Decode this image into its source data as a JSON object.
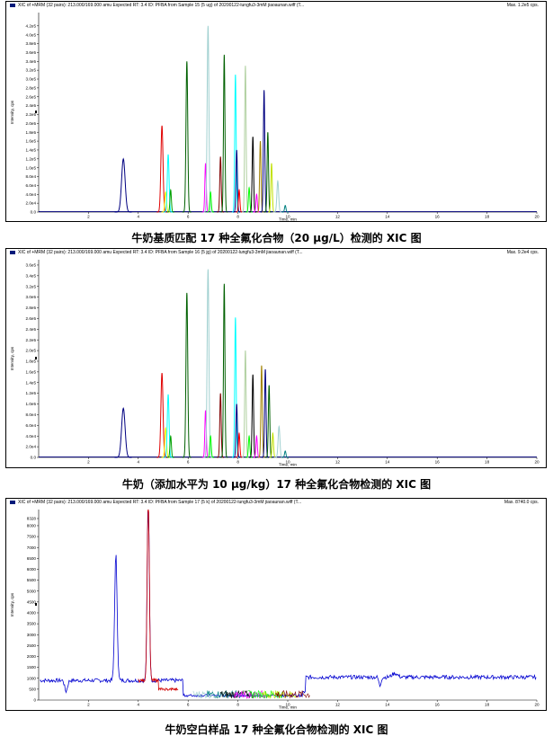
{
  "panels": [
    {
      "header": "XIC of +MRM (32 pairs): 213.000/169.000 amu Expected RT: 3.4 ID: PFBA from Sample 15 (5 ug) of 20200122-lungfu3-3mM jiaoaunan.wiff (T...",
      "max_label": "Max. 1.2e5 cps.",
      "caption": "牛奶基质匹配 17 种全氟化合物（20 μg/L）检测的 XIC 图",
      "ylabel": "Intensity, cps",
      "xlabel": "Time, min"
    },
    {
      "header": "XIC of +MRM (32 pairs): 213.000/169.000 amu Expected RT: 3.4 ID: PFBA from Sample 16 (5 jg) of 20200122-lungfu3-3mM jiaoaunan.wiff (T...",
      "max_label": "Max. 9.2e4 cps.",
      "caption": "牛奶（添加水平为 10 μg/kg）17 种全氟化合物检测的 XIC 图",
      "ylabel": "Intensity, cps",
      "xlabel": "Time, min"
    },
    {
      "header": "XIC of +MRM (32 pairs): 213.000/169.000 amu Expected RT: 3.4 ID: PFBA from Sample 17 (5 k) of 20200122-lungfu3-3mM jiaoaunan.wiff (T...",
      "max_label": "Max. 8740.0 cps.",
      "caption": "牛奶空白样品 17 种全氟化合物检测的 XIC 图",
      "ylabel": "Intensity, cps",
      "xlabel": "Time, min"
    }
  ],
  "chart_data": [
    {
      "type": "line",
      "xlabel": "Time, min",
      "ylabel": "Intensity, cps",
      "xlim": [
        0,
        20
      ],
      "x_ticks": [
        "2",
        "4",
        "6",
        "8",
        "10",
        "12",
        "14",
        "16",
        "18",
        "20"
      ],
      "ylim": [
        0,
        450000
      ],
      "y_ticks": [
        "0.0",
        "2.0e4",
        "4.0e4",
        "6.0e4",
        "8.0e4",
        "1.0e5",
        "1.2e5",
        "1.4e5",
        "1.6e5",
        "1.8e5",
        "2.0e5",
        "2.2e5",
        "2.4e5",
        "2.6e5",
        "2.8e5",
        "3.0e5",
        "3.2e5",
        "3.4e5",
        "3.6e5",
        "3.8e5",
        "4.0e5",
        "4.2e5"
      ],
      "y_tick_values": [
        0,
        20000,
        40000,
        60000,
        80000,
        100000,
        120000,
        140000,
        160000,
        180000,
        200000,
        220000,
        240000,
        260000,
        280000,
        300000,
        320000,
        340000,
        360000,
        380000,
        400000,
        420000
      ],
      "peaks": [
        {
          "rt": 3.4,
          "height": 120000,
          "color": "#000080",
          "width": 0.1
        },
        {
          "rt": 4.95,
          "height": 195000,
          "color": "#e00000",
          "width": 0.06
        },
        {
          "rt": 5.1,
          "height": 45000,
          "color": "#ffff00",
          "width": 0.05
        },
        {
          "rt": 5.2,
          "height": 130000,
          "color": "#00ffff",
          "width": 0.05
        },
        {
          "rt": 5.3,
          "height": 50000,
          "color": "#00a000",
          "width": 0.04
        },
        {
          "rt": 5.95,
          "height": 340000,
          "color": "#006000",
          "width": 0.05
        },
        {
          "rt": 6.7,
          "height": 110000,
          "color": "#ff00ff",
          "width": 0.04
        },
        {
          "rt": 6.8,
          "height": 420000,
          "color": "#a0d0d0",
          "width": 0.05
        },
        {
          "rt": 6.9,
          "height": 45000,
          "color": "#00ff00",
          "width": 0.04
        },
        {
          "rt": 7.3,
          "height": 125000,
          "color": "#800000",
          "width": 0.04
        },
        {
          "rt": 7.45,
          "height": 355000,
          "color": "#006000",
          "width": 0.04
        },
        {
          "rt": 7.9,
          "height": 310000,
          "color": "#00ffff",
          "width": 0.04
        },
        {
          "rt": 7.95,
          "height": 140000,
          "color": "#000080",
          "width": 0.04
        },
        {
          "rt": 8.05,
          "height": 50000,
          "color": "#ff0000",
          "width": 0.04
        },
        {
          "rt": 8.3,
          "height": 330000,
          "color": "#b0d0a0",
          "width": 0.04
        },
        {
          "rt": 8.45,
          "height": 55000,
          "color": "#00ff00",
          "width": 0.04
        },
        {
          "rt": 8.6,
          "height": 170000,
          "color": "#000000",
          "width": 0.04
        },
        {
          "rt": 8.75,
          "height": 40000,
          "color": "#ff00ff",
          "width": 0.04
        },
        {
          "rt": 8.9,
          "height": 160000,
          "color": "#a08000",
          "width": 0.04
        },
        {
          "rt": 9.05,
          "height": 275000,
          "color": "#000080",
          "width": 0.04
        },
        {
          "rt": 9.2,
          "height": 180000,
          "color": "#006000",
          "width": 0.04
        },
        {
          "rt": 9.35,
          "height": 110000,
          "color": "#c0e000",
          "width": 0.04
        },
        {
          "rt": 9.6,
          "height": 70000,
          "color": "#a0d0d0",
          "width": 0.05
        },
        {
          "rt": 9.9,
          "height": 15000,
          "color": "#008080",
          "width": 0.04
        }
      ]
    },
    {
      "type": "line",
      "xlabel": "Time, min",
      "ylabel": "Intensity, cps",
      "xlim": [
        0,
        20
      ],
      "x_ticks": [
        "2",
        "4",
        "6",
        "8",
        "10",
        "12",
        "14",
        "16",
        "18",
        "20"
      ],
      "ylim": [
        0,
        370000
      ],
      "y_ticks": [
        "0.0",
        "2.0e4",
        "4.0e4",
        "6.0e4",
        "8.0e4",
        "1.0e5",
        "1.2e5",
        "1.4e5",
        "1.6e5",
        "1.8e5",
        "2.0e5",
        "2.2e5",
        "2.4e5",
        "2.6e5",
        "2.8e5",
        "3.0e5",
        "3.2e5",
        "3.4e5",
        "3.6e5"
      ],
      "y_tick_values": [
        0,
        20000,
        40000,
        60000,
        80000,
        100000,
        120000,
        140000,
        160000,
        180000,
        200000,
        220000,
        240000,
        260000,
        280000,
        300000,
        320000,
        340000,
        360000
      ],
      "peaks": [
        {
          "rt": 3.4,
          "height": 92000,
          "color": "#000080",
          "width": 0.1
        },
        {
          "rt": 4.95,
          "height": 158000,
          "color": "#e00000",
          "width": 0.06
        },
        {
          "rt": 5.1,
          "height": 55000,
          "color": "#ffff00",
          "width": 0.05
        },
        {
          "rt": 5.2,
          "height": 118000,
          "color": "#00ffff",
          "width": 0.05
        },
        {
          "rt": 5.3,
          "height": 40000,
          "color": "#00a000",
          "width": 0.04
        },
        {
          "rt": 5.95,
          "height": 308000,
          "color": "#006000",
          "width": 0.05
        },
        {
          "rt": 6.7,
          "height": 88000,
          "color": "#ff00ff",
          "width": 0.04
        },
        {
          "rt": 6.8,
          "height": 352000,
          "color": "#a0d0d0",
          "width": 0.05
        },
        {
          "rt": 6.9,
          "height": 40000,
          "color": "#00ff00",
          "width": 0.04
        },
        {
          "rt": 7.3,
          "height": 120000,
          "color": "#800000",
          "width": 0.04
        },
        {
          "rt": 7.45,
          "height": 325000,
          "color": "#006000",
          "width": 0.04
        },
        {
          "rt": 7.9,
          "height": 262000,
          "color": "#00ffff",
          "width": 0.04
        },
        {
          "rt": 7.95,
          "height": 100000,
          "color": "#000080",
          "width": 0.04
        },
        {
          "rt": 8.05,
          "height": 45000,
          "color": "#ff0000",
          "width": 0.04
        },
        {
          "rt": 8.3,
          "height": 200000,
          "color": "#b0d0a0",
          "width": 0.04
        },
        {
          "rt": 8.45,
          "height": 40000,
          "color": "#00ff00",
          "width": 0.04
        },
        {
          "rt": 8.6,
          "height": 155000,
          "color": "#000000",
          "width": 0.04
        },
        {
          "rt": 8.75,
          "height": 40000,
          "color": "#ff00ff",
          "width": 0.04
        },
        {
          "rt": 8.95,
          "height": 172000,
          "color": "#a08000",
          "width": 0.04
        },
        {
          "rt": 9.1,
          "height": 165000,
          "color": "#000080",
          "width": 0.04
        },
        {
          "rt": 9.25,
          "height": 135000,
          "color": "#006000",
          "width": 0.04
        },
        {
          "rt": 9.4,
          "height": 45000,
          "color": "#c0e000",
          "width": 0.04
        },
        {
          "rt": 9.65,
          "height": 58000,
          "color": "#a0d0d0",
          "width": 0.05
        },
        {
          "rt": 9.9,
          "height": 12000,
          "color": "#008080",
          "width": 0.04
        }
      ]
    },
    {
      "type": "line",
      "xlabel": "Time, min",
      "ylabel": "Intensity, cps",
      "xlim": [
        0,
        20
      ],
      "x_ticks": [
        "2",
        "4",
        "6",
        "8",
        "10",
        "12",
        "14",
        "16",
        "18",
        "20"
      ],
      "ylim": [
        0,
        8740
      ],
      "y_ticks": [
        "0",
        "500",
        "1000",
        "1500",
        "2000",
        "2500",
        "3000",
        "3500",
        "4000",
        "4500",
        "5000",
        "5500",
        "6000",
        "6500",
        "7000",
        "7500",
        "8000",
        "8328"
      ],
      "y_tick_values": [
        0,
        500,
        1000,
        1500,
        2000,
        2500,
        3000,
        3500,
        4000,
        4500,
        5000,
        5500,
        6000,
        6500,
        7000,
        7500,
        8000,
        8328
      ],
      "baseline": {
        "color": "#0000d0",
        "level": 900,
        "noise": 90
      },
      "peaks": [
        {
          "rt": 3.1,
          "height": 5800,
          "color": "#0000d0",
          "width": 0.07
        },
        {
          "rt": 4.4,
          "height": 8600,
          "color": "#d00000",
          "width": 0.06
        }
      ]
    }
  ]
}
